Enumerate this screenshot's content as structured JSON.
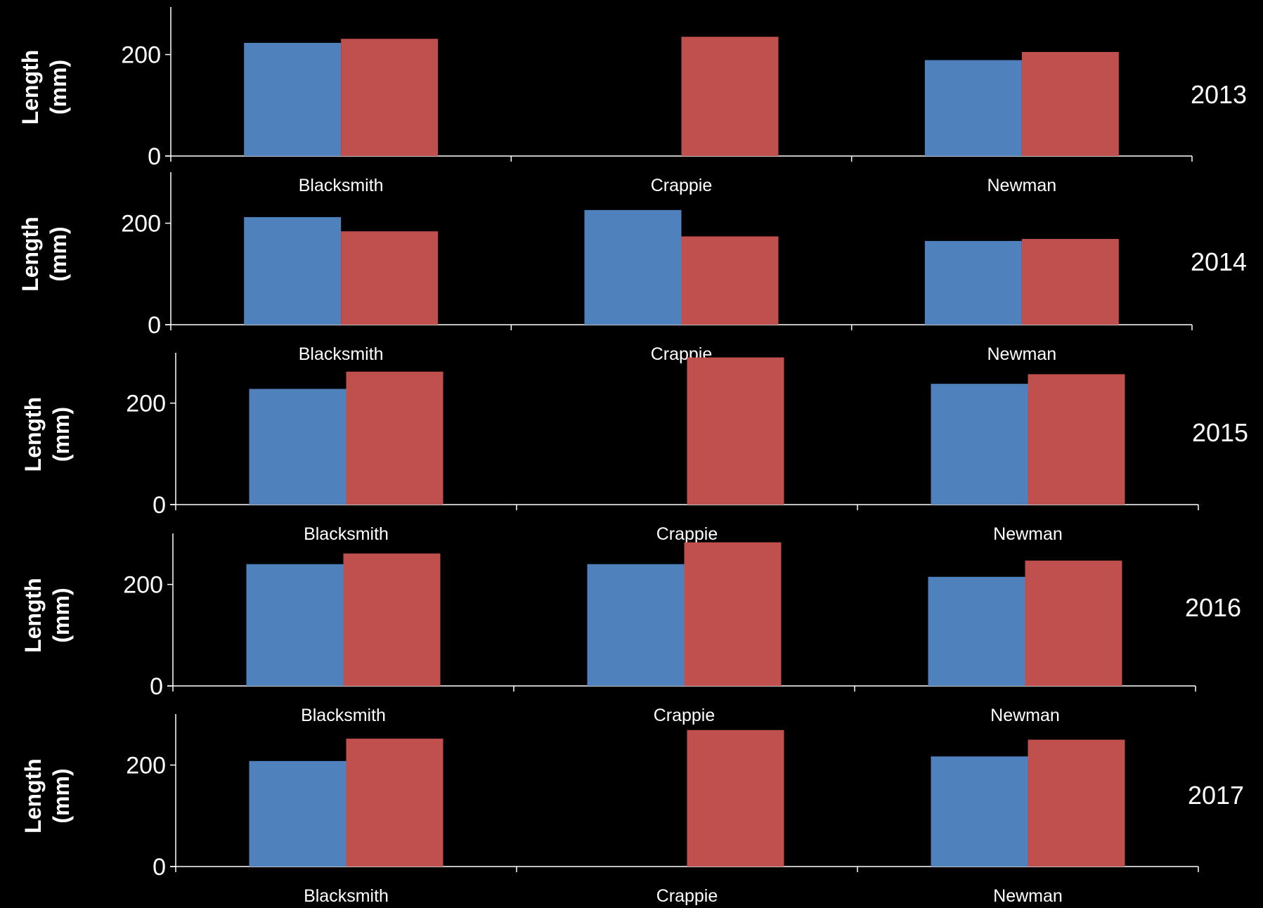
{
  "slide_title": "",
  "colors": {
    "background": "#000000",
    "title": "#ffff00",
    "series": [
      "#4f81bd",
      "#c0504d"
    ],
    "text": "#ffffff",
    "axis": "#ffffff"
  },
  "chart_data": [
    {
      "type": "bar",
      "year_label": "2013",
      "ylabel": "Length (mm)",
      "ylim": [
        0,
        300
      ],
      "yticks": [
        0,
        200
      ],
      "categories": [
        "Blacksmith",
        "Crappie",
        "Newman"
      ],
      "series": [
        {
          "values": [
            223,
            null,
            189
          ]
        },
        {
          "values": [
            231,
            235,
            205
          ]
        }
      ]
    },
    {
      "type": "bar",
      "year_label": "2014",
      "ylabel": "Length (mm)",
      "ylim": [
        0,
        300
      ],
      "yticks": [
        0,
        200
      ],
      "categories": [
        "Blacksmith",
        "Crappie",
        "Newman"
      ],
      "series": [
        {
          "values": [
            212,
            226,
            165
          ]
        },
        {
          "values": [
            184,
            174,
            169
          ]
        }
      ]
    },
    {
      "type": "bar",
      "year_label": "2015",
      "ylabel": "Length (mm)",
      "ylim": [
        0,
        300
      ],
      "yticks": [
        0,
        200
      ],
      "categories": [
        "Blacksmith",
        "Crappie",
        "Newman"
      ],
      "series": [
        {
          "values": [
            228,
            null,
            238
          ]
        },
        {
          "values": [
            262,
            290,
            257
          ]
        }
      ]
    },
    {
      "type": "bar",
      "year_label": "2016",
      "ylabel": "Length (mm)",
      "ylim": [
        0,
        300
      ],
      "yticks": [
        0,
        200
      ],
      "categories": [
        "Blacksmith",
        "Crappie",
        "Newman"
      ],
      "series": [
        {
          "values": [
            240,
            240,
            215
          ]
        },
        {
          "values": [
            261,
            283,
            247
          ]
        }
      ]
    },
    {
      "type": "bar",
      "year_label": "2017",
      "ylabel": "Length (mm)",
      "ylim": [
        0,
        300
      ],
      "yticks": [
        0,
        200
      ],
      "categories": [
        "Blacksmith",
        "Crappie",
        "Newman"
      ],
      "series": [
        {
          "values": [
            208,
            null,
            217
          ]
        },
        {
          "values": [
            252,
            269,
            250
          ]
        }
      ]
    }
  ]
}
